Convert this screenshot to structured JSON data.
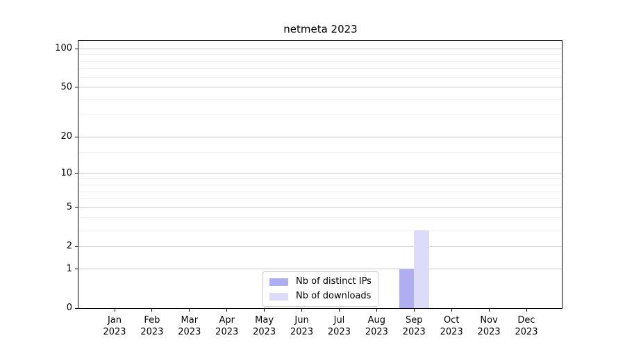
{
  "figure": {
    "title": "netmeta 2023"
  },
  "chart_data": {
    "type": "bar",
    "title": "netmeta 2023",
    "categories": [
      "Jan 2023",
      "Feb 2023",
      "Mar 2023",
      "Apr 2023",
      "May 2023",
      "Jun 2023",
      "Jul 2023",
      "Aug 2023",
      "Sep 2023",
      "Oct 2023",
      "Nov 2023",
      "Dec 2023"
    ],
    "series": [
      {
        "name": "Nb of distinct IPs",
        "color": "#aeaef0",
        "values": [
          0,
          0,
          0,
          0,
          0,
          0,
          0,
          0,
          1,
          0,
          0,
          0
        ]
      },
      {
        "name": "Nb of downloads",
        "color": "#dcdcf8",
        "values": [
          0,
          0,
          0,
          0,
          0,
          0,
          0,
          0,
          3,
          0,
          0,
          0
        ]
      }
    ],
    "xlabel": "",
    "ylabel": "",
    "y_scale": "log1p",
    "y_major_ticks": [
      0,
      1,
      2,
      5,
      10,
      20,
      50,
      100
    ],
    "y_minor_ticks": [
      3,
      4,
      6,
      7,
      8,
      9,
      15,
      30,
      40,
      60,
      70,
      80,
      90
    ],
    "ylim": [
      0,
      115
    ],
    "grid": "on",
    "legend_position": "lower center",
    "colors": {
      "major_grid": "#c9c9c9",
      "minor_grid": "#f0f0f0",
      "axis": "#000000",
      "background": "#ffffff"
    }
  }
}
